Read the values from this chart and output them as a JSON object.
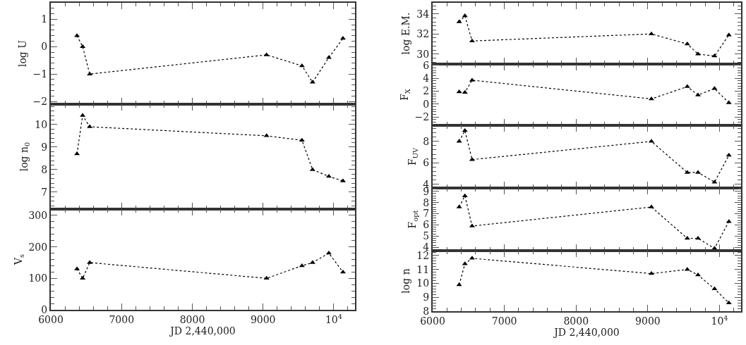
{
  "chart_data": [
    {
      "type": "line",
      "ylabel": "log U",
      "x": [
        6370,
        6450,
        6550,
        9050,
        9550,
        9700,
        9930,
        10130
      ],
      "values": [
        0.4,
        0,
        -1,
        -0.3,
        -0.7,
        -1.3,
        -0.4,
        0.3
      ],
      "color": "#000000",
      "marker": "triangle",
      "line_style": "dotted",
      "xlim": [
        6000,
        10300
      ],
      "xticks": [
        6000,
        7000,
        8000,
        9000,
        10000
      ],
      "ylim": [
        -2.1,
        1.6
      ],
      "yticks": [
        -2,
        -1,
        0,
        1
      ],
      "tick_labels": "y",
      "grid": false,
      "legend": false
    },
    {
      "type": "line",
      "ylabel": "log n$_{0}$",
      "x": [
        6370,
        6450,
        6550,
        9050,
        9550,
        9700,
        9930,
        10130
      ],
      "values": [
        8.7,
        10.4,
        9.9,
        9.5,
        9.3,
        8,
        7.7,
        7.5
      ],
      "color": "#000000",
      "marker": "triangle",
      "line_style": "dotted",
      "xlim": [
        6000,
        10300
      ],
      "xticks": [
        6000,
        7000,
        8000,
        9000,
        10000
      ],
      "ylim": [
        6.25,
        10.9
      ],
      "yticks": [
        7,
        8,
        9,
        10
      ],
      "tick_labels": "y",
      "grid": false,
      "legend": false
    },
    {
      "type": "line",
      "ylabel": "V$_{s}$",
      "xlabel": "JD 2,440,000",
      "x": [
        6370,
        6450,
        6550,
        9050,
        9550,
        9700,
        9930,
        10130
      ],
      "values": [
        130,
        100,
        150,
        100,
        140,
        150,
        180,
        120
      ],
      "color": "#000000",
      "marker": "triangle",
      "line_style": "dotted",
      "xlim": [
        6000,
        10300
      ],
      "xticks": [
        6000,
        7000,
        8000,
        9000,
        {
          "value": 10000,
          "label": "10$^{4}$"
        }
      ],
      "ylim": [
        0,
        320
      ],
      "yticks": [
        0,
        100,
        200,
        300
      ],
      "grid": false,
      "legend": false
    },
    {
      "type": "line",
      "ylabel": "log E.M.",
      "x": [
        6370,
        6450,
        6550,
        9050,
        9550,
        9700,
        9930,
        10130
      ],
      "values": [
        33.2,
        33.8,
        31.3,
        32,
        31,
        30,
        29.8,
        31.9
      ],
      "color": "#000000",
      "marker": "triangle",
      "line_style": "dotted",
      "xlim": [
        6000,
        10300
      ],
      "xticks": [
        6000,
        7000,
        8000,
        9000,
        10000
      ],
      "ylim": [
        29,
        35.1
      ],
      "yticks": [
        30,
        32,
        34
      ],
      "tick_labels": "y",
      "grid": false,
      "legend": false
    },
    {
      "type": "line",
      "ylabel": "F$_{X}$",
      "x": [
        6370,
        6450,
        6550,
        9050,
        9550,
        9700,
        9930,
        10130
      ],
      "values": [
        1.9,
        1.8,
        3.7,
        0.8,
        2.7,
        1.4,
        2.4,
        0.2
      ],
      "color": "#000000",
      "marker": "triangle",
      "line_style": "dotted",
      "xlim": [
        6000,
        10300
      ],
      "xticks": [
        6000,
        7000,
        8000,
        9000,
        10000
      ],
      "ylim": [
        -3.3,
        6.2
      ],
      "yticks": [
        -2,
        0,
        2,
        4,
        6
      ],
      "tick_labels": "y",
      "grid": false,
      "legend": false
    },
    {
      "type": "line",
      "ylabel": "F$_{UV}$",
      "x": [
        6370,
        6450,
        6550,
        9050,
        9550,
        9700,
        9930,
        10130
      ],
      "values": [
        8,
        9,
        6.3,
        8,
        5.1,
        5.1,
        4.2,
        6.7
      ],
      "color": "#000000",
      "marker": "triangle",
      "line_style": "dotted",
      "xlim": [
        6000,
        10300
      ],
      "xticks": [
        6000,
        7000,
        8000,
        9000,
        10000
      ],
      "ylim": [
        3.65,
        9.5
      ],
      "yticks": [
        4,
        6,
        8
      ],
      "tick_labels": "y",
      "grid": false,
      "legend": false
    },
    {
      "type": "line",
      "ylabel": "F$_{opt}$",
      "x": [
        6370,
        6450,
        6550,
        9050,
        9550,
        9700,
        9930,
        10130
      ],
      "values": [
        7.6,
        8.6,
        5.9,
        7.6,
        4.8,
        4.8,
        3.9,
        6.3
      ],
      "color": "#000000",
      "marker": "triangle",
      "line_style": "dotted",
      "xlim": [
        6000,
        10300
      ],
      "xticks": [
        6000,
        7000,
        8000,
        9000,
        10000
      ],
      "ylim": [
        3.7,
        9.3
      ],
      "yticks": [
        4,
        5,
        6,
        7,
        8,
        9
      ],
      "tick_labels": "y",
      "grid": false,
      "legend": false
    },
    {
      "type": "line",
      "ylabel": "log n",
      "xlabel": "JD 2,440,000",
      "x": [
        6370,
        6450,
        6550,
        9050,
        9550,
        9700,
        9930,
        10130
      ],
      "values": [
        9.9,
        11.4,
        11.8,
        10.7,
        11,
        10.6,
        9.6,
        8.6
      ],
      "color": "#000000",
      "marker": "triangle",
      "line_style": "dotted",
      "xlim": [
        6000,
        10300
      ],
      "xticks": [
        6000,
        7000,
        8000,
        9000,
        {
          "value": 10000,
          "label": "10$^{4}$"
        }
      ],
      "ylim": [
        8,
        12.35
      ],
      "yticks": [
        8,
        9,
        10,
        11,
        12
      ],
      "grid": false,
      "legend": false
    }
  ]
}
